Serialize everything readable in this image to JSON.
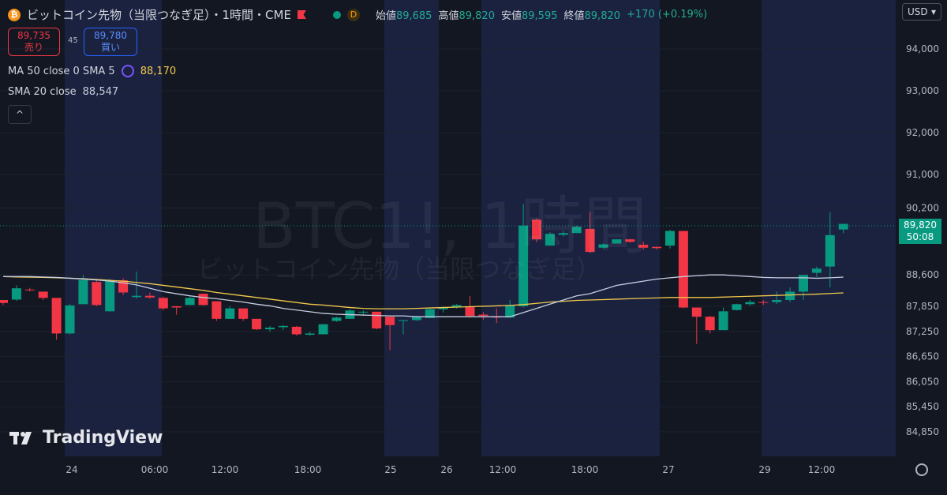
{
  "header": {
    "title": "ビットコイン先物（当限つなぎ足）・1時間・CME",
    "symbol_icon": "bitcoin-icon",
    "d_badge": "D",
    "ohlc": {
      "open_label": "始値",
      "open": "89,685",
      "high_label": "高値",
      "high": "89,820",
      "low_label": "安値",
      "low": "89,595",
      "close_label": "終値",
      "close": "89,820",
      "change": "+170 (+0.19%)"
    }
  },
  "trade": {
    "sell_price": "89,735",
    "sell_label": "売り",
    "spread": "45",
    "buy_price": "89,780",
    "buy_label": "買い"
  },
  "indicators": {
    "ma_label": "MA 50 close 0 SMA 5",
    "ma_value": "88,170",
    "sma_label": "SMA 20 close",
    "sma_value": "88,547",
    "collapse_icon": "^"
  },
  "currency": {
    "label": "USD",
    "icon": "chevron-down-icon"
  },
  "watermark": {
    "line1": "BTC1!, 1時間",
    "line2": "ビットコイン先物（当限つなぎ足）"
  },
  "logo": {
    "text": "TradingView"
  },
  "price_tag": {
    "price": "89,820",
    "countdown": "50:08"
  },
  "colors": {
    "up": "#089981",
    "down": "#f23645",
    "ma50": "#f2c94c",
    "sma20": "#c5cee0",
    "background": "#131722",
    "session": "#1a2240"
  },
  "chart_data": {
    "type": "candlestick",
    "x_tick_labels": [
      "24",
      "06:00",
      "12:00",
      "18:00",
      "25",
      "26",
      "12:00",
      "18:00",
      "27",
      "29",
      "12:00"
    ],
    "y_ticks": [
      84850,
      85450,
      86050,
      86650,
      87250,
      87850,
      88600,
      90200,
      91000,
      92000,
      93000,
      94000
    ],
    "ylim": [
      84550,
      94900
    ],
    "candles": [
      {
        "o": 88000,
        "h": 88000,
        "l": 87880,
        "c": 87930
      },
      {
        "o": 88010,
        "h": 88350,
        "l": 87980,
        "c": 88280
      },
      {
        "o": 88250,
        "h": 88290,
        "l": 88200,
        "c": 88240
      },
      {
        "o": 88200,
        "h": 88200,
        "l": 88000,
        "c": 88050
      },
      {
        "o": 88050,
        "h": 88050,
        "l": 87050,
        "c": 87200
      },
      {
        "o": 87200,
        "h": 87900,
        "l": 87180,
        "c": 87870
      },
      {
        "o": 87900,
        "h": 88600,
        "l": 87900,
        "c": 88480
      },
      {
        "o": 88430,
        "h": 88500,
        "l": 87850,
        "c": 87880
      },
      {
        "o": 87730,
        "h": 88500,
        "l": 87720,
        "c": 88470
      },
      {
        "o": 88470,
        "h": 88520,
        "l": 88120,
        "c": 88180
      },
      {
        "o": 88070,
        "h": 88680,
        "l": 88030,
        "c": 88100
      },
      {
        "o": 88100,
        "h": 88180,
        "l": 88030,
        "c": 88060
      },
      {
        "o": 88050,
        "h": 88080,
        "l": 87750,
        "c": 87800
      },
      {
        "o": 87850,
        "h": 87850,
        "l": 87650,
        "c": 87820
      },
      {
        "o": 87880,
        "h": 88080,
        "l": 87880,
        "c": 88050
      },
      {
        "o": 88150,
        "h": 88150,
        "l": 87860,
        "c": 87880
      },
      {
        "o": 87970,
        "h": 87970,
        "l": 87500,
        "c": 87550
      },
      {
        "o": 87550,
        "h": 87860,
        "l": 87550,
        "c": 87800
      },
      {
        "o": 87800,
        "h": 87800,
        "l": 87500,
        "c": 87550
      },
      {
        "o": 87550,
        "h": 87550,
        "l": 87280,
        "c": 87300
      },
      {
        "o": 87300,
        "h": 87380,
        "l": 87240,
        "c": 87340
      },
      {
        "o": 87350,
        "h": 87400,
        "l": 87280,
        "c": 87380
      },
      {
        "o": 87360,
        "h": 87380,
        "l": 87150,
        "c": 87180
      },
      {
        "o": 87170,
        "h": 87240,
        "l": 87150,
        "c": 87200
      },
      {
        "o": 87180,
        "h": 87430,
        "l": 87180,
        "c": 87420
      },
      {
        "o": 87500,
        "h": 87600,
        "l": 87480,
        "c": 87580
      },
      {
        "o": 87550,
        "h": 87780,
        "l": 87550,
        "c": 87750
      },
      {
        "o": 87700,
        "h": 87750,
        "l": 87620,
        "c": 87720
      },
      {
        "o": 87720,
        "h": 87720,
        "l": 87300,
        "c": 87320
      },
      {
        "o": 87600,
        "h": 87600,
        "l": 86800,
        "c": 87400
      },
      {
        "o": 87500,
        "h": 87500,
        "l": 87180,
        "c": 87520
      },
      {
        "o": 87520,
        "h": 87620,
        "l": 87500,
        "c": 87600
      },
      {
        "o": 87570,
        "h": 87820,
        "l": 87570,
        "c": 87780
      },
      {
        "o": 87780,
        "h": 87850,
        "l": 87700,
        "c": 87830
      },
      {
        "o": 87830,
        "h": 87900,
        "l": 87800,
        "c": 87880
      },
      {
        "o": 87830,
        "h": 88100,
        "l": 87580,
        "c": 87620
      },
      {
        "o": 87650,
        "h": 87710,
        "l": 87530,
        "c": 87620
      },
      {
        "o": 87600,
        "h": 87800,
        "l": 87450,
        "c": 87580
      },
      {
        "o": 87580,
        "h": 88000,
        "l": 87580,
        "c": 87880
      },
      {
        "o": 87850,
        "h": 90300,
        "l": 87820,
        "c": 89780
      },
      {
        "o": 89920,
        "h": 89950,
        "l": 89380,
        "c": 89450
      },
      {
        "o": 89300,
        "h": 89620,
        "l": 89300,
        "c": 89580
      },
      {
        "o": 89560,
        "h": 89650,
        "l": 89520,
        "c": 89600
      },
      {
        "o": 89600,
        "h": 89780,
        "l": 89600,
        "c": 89750
      },
      {
        "o": 89700,
        "h": 90100,
        "l": 89120,
        "c": 89150
      },
      {
        "o": 89250,
        "h": 89350,
        "l": 89230,
        "c": 89330
      },
      {
        "o": 89350,
        "h": 89450,
        "l": 89380,
        "c": 89450
      },
      {
        "o": 89450,
        "h": 89460,
        "l": 89370,
        "c": 89390
      },
      {
        "o": 89320,
        "h": 89400,
        "l": 89200,
        "c": 89250
      },
      {
        "o": 89270,
        "h": 89280,
        "l": 89200,
        "c": 89240
      },
      {
        "o": 89300,
        "h": 89680,
        "l": 89230,
        "c": 89650
      },
      {
        "o": 89650,
        "h": 89650,
        "l": 87800,
        "c": 87820
      },
      {
        "o": 87820,
        "h": 87820,
        "l": 86950,
        "c": 87600
      },
      {
        "o": 87600,
        "h": 87620,
        "l": 87200,
        "c": 87280
      },
      {
        "o": 87280,
        "h": 87820,
        "l": 87280,
        "c": 87730
      },
      {
        "o": 87760,
        "h": 87910,
        "l": 87750,
        "c": 87900
      },
      {
        "o": 87900,
        "h": 88000,
        "l": 87860,
        "c": 87950
      },
      {
        "o": 87950,
        "h": 88000,
        "l": 87880,
        "c": 87940
      },
      {
        "o": 87950,
        "h": 88200,
        "l": 87900,
        "c": 88000
      },
      {
        "o": 88000,
        "h": 88300,
        "l": 87950,
        "c": 88200
      },
      {
        "o": 88200,
        "h": 88500,
        "l": 88000,
        "c": 88600
      },
      {
        "o": 88650,
        "h": 88800,
        "l": 88550,
        "c": 88750
      },
      {
        "o": 88800,
        "h": 90100,
        "l": 88300,
        "c": 89550
      },
      {
        "o": 89685,
        "h": 89820,
        "l": 89595,
        "c": 89820
      }
    ],
    "series": [
      {
        "values": [
          88560,
          88550,
          88545,
          88540,
          88530,
          88520,
          88510,
          88490,
          88470,
          88450,
          88420,
          88390,
          88350,
          88310,
          88270,
          88230,
          88180,
          88140,
          88100,
          88060,
          88020,
          87980,
          87940,
          87900,
          87880,
          87850,
          87820,
          87800,
          87790,
          87790,
          87790,
          87800,
          87810,
          87820,
          87830,
          87840,
          87850,
          87860,
          87870,
          87890,
          87920,
          87950,
          87970,
          87990,
          88000,
          88010,
          88020,
          88030,
          88040,
          88050,
          88060,
          88060,
          88060,
          88060,
          88070,
          88080,
          88090,
          88100,
          88110,
          88120,
          88130,
          88140,
          88155,
          88170
        ]
      },
      {
        "values": [
          88560,
          88560,
          88560,
          88550,
          88540,
          88520,
          88500,
          88480,
          88450,
          88410,
          88360,
          88280,
          88200,
          88150,
          88100,
          88060,
          88030,
          87990,
          87950,
          87900,
          87860,
          87800,
          87760,
          87720,
          87680,
          87660,
          87650,
          87640,
          87630,
          87620,
          87620,
          87600,
          87600,
          87600,
          87600,
          87600,
          87600,
          87600,
          87600,
          87700,
          87800,
          87900,
          88000,
          88100,
          88150,
          88250,
          88350,
          88400,
          88450,
          88500,
          88530,
          88560,
          88580,
          88600,
          88600,
          88580,
          88560,
          88540,
          88530,
          88530,
          88530,
          88520,
          88530,
          88547
        ]
      }
    ]
  }
}
